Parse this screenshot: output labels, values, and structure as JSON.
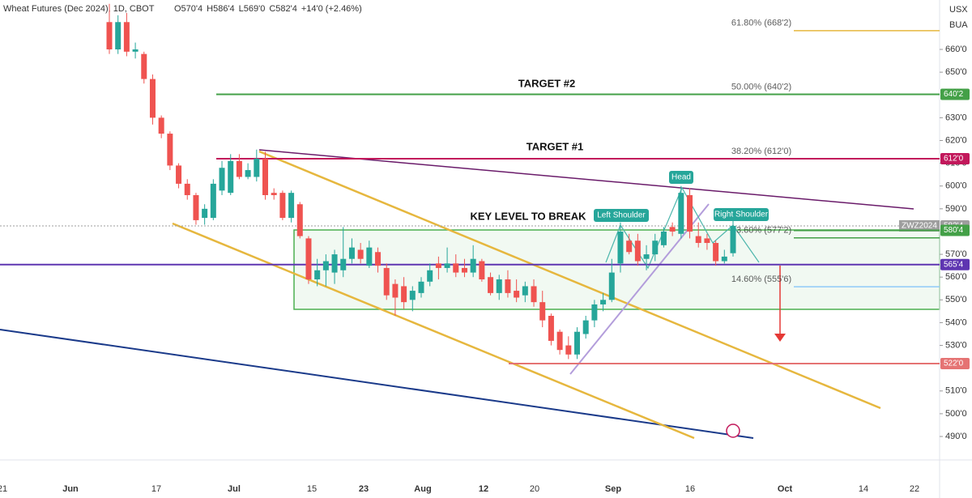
{
  "chart_data": {
    "type": "candlestick",
    "title": "Wheat Futures (Dec 2024), 1D, CBOT",
    "ohlc_labels": [
      "O570'4",
      "H586'4",
      "L569'0",
      "C582'4",
      "+14'0 (+2.46%)"
    ],
    "currency_labels": [
      "USX",
      "BUA"
    ],
    "up_color": "#26a69a",
    "down_color": "#ef5350",
    "candles": {
      "open": [
        672,
        660,
        672,
        659,
        658,
        647,
        630,
        623,
        609,
        601,
        596,
        586,
        586,
        598,
        597,
        611,
        604,
        604,
        612,
        597,
        597,
        586,
        592,
        577,
        559,
        563,
        562,
        563,
        568,
        572,
        565,
        571,
        564,
        557,
        556,
        550,
        553,
        558,
        566,
        564,
        566,
        564,
        562,
        567,
        560,
        553,
        559,
        554,
        552,
        556,
        549,
        543,
        536,
        530,
        526,
        535,
        541,
        548,
        550,
        566,
        576,
        576,
        568,
        570,
        574,
        582,
        579,
        596,
        578,
        577,
        575,
        567,
        570.5
      ],
      "high": [
        680,
        675,
        676,
        663,
        659,
        649,
        631,
        624,
        610,
        603,
        597,
        592,
        603,
        611,
        614,
        614,
        610,
        616,
        615,
        599,
        598,
        598,
        593,
        578,
        568,
        570,
        572,
        582,
        577,
        575,
        576,
        573,
        566,
        559,
        560,
        556,
        560,
        566,
        569,
        573,
        570,
        568,
        574,
        568,
        562,
        561,
        563,
        559,
        558,
        559,
        554,
        544,
        537,
        534,
        538,
        543,
        550,
        553,
        568,
        584,
        579,
        579,
        574,
        579,
        582,
        584,
        600,
        599,
        584,
        579,
        576,
        572,
        586.5
      ],
      "low": [
        658,
        658,
        657,
        656,
        645,
        627,
        621,
        607,
        599,
        594,
        583,
        583,
        585,
        596,
        596,
        603,
        603,
        602,
        594,
        594,
        585,
        584,
        577,
        557,
        556,
        556,
        557,
        560,
        566,
        566,
        564,
        562,
        550,
        543,
        546,
        545,
        551,
        556,
        559,
        562,
        560,
        560,
        560,
        558,
        552,
        550,
        551,
        549,
        549,
        547,
        538,
        530,
        526,
        524,
        524,
        533,
        538,
        545,
        549,
        562,
        570,
        565,
        563,
        567,
        573,
        578,
        577,
        577,
        573,
        572,
        565,
        566,
        569
      ],
      "close": [
        660,
        672,
        659,
        660,
        647,
        630,
        623,
        609,
        601,
        596,
        585,
        590,
        601,
        608,
        611,
        604,
        607,
        612,
        596,
        596,
        586,
        597,
        578,
        559,
        563,
        567,
        570,
        568,
        573,
        568,
        573,
        565,
        552,
        551,
        549,
        554,
        558,
        563,
        564,
        566,
        562,
        562,
        568,
        559,
        553,
        559,
        553,
        551,
        556,
        549,
        541,
        532,
        528,
        526,
        536,
        541,
        548,
        550,
        562,
        580,
        571,
        567,
        570,
        576,
        580,
        580,
        597,
        580,
        575,
        575,
        567,
        569,
        582.5
      ]
    },
    "xtick_labels": [
      "21",
      "Jun",
      "17",
      "Jul",
      "15",
      "23",
      "Aug",
      "12",
      "20",
      "Sep",
      "16",
      "Oct",
      "14",
      "22"
    ],
    "ylim": [
      479.7,
      681.7
    ],
    "yticks": [
      {
        "value": 660,
        "label": "660'0"
      },
      {
        "value": 650,
        "label": "650'0"
      },
      {
        "value": 630,
        "label": "630'0"
      },
      {
        "value": 620,
        "label": "620'0"
      },
      {
        "value": 610,
        "label": "610'0"
      },
      {
        "value": 600,
        "label": "600'0"
      },
      {
        "value": 590,
        "label": "590'0"
      },
      {
        "value": 570,
        "label": "570'0"
      },
      {
        "value": 560,
        "label": "560'0"
      },
      {
        "value": 550,
        "label": "550'0"
      },
      {
        "value": 540,
        "label": "540'0"
      },
      {
        "value": 530,
        "label": "530'0"
      },
      {
        "value": 510,
        "label": "510'0"
      },
      {
        "value": 500,
        "label": "500'0"
      },
      {
        "value": 490,
        "label": "490'0"
      }
    ],
    "levels": [
      {
        "value": 640.25,
        "label": "640'2",
        "color": "#43a047"
      },
      {
        "value": 612,
        "label": "612'0",
        "color": "#c2185b"
      },
      {
        "value": 582.5,
        "label": "582'4",
        "color": "#9e9e9e",
        "name": "ZWZ2024"
      },
      {
        "value": 580.5,
        "label": "580'4",
        "color": "#43a047"
      },
      {
        "value": 565.5,
        "label": "565'4",
        "color": "#5e35b1"
      },
      {
        "value": 522,
        "label": "522'0",
        "color": "#e57373"
      }
    ],
    "fib_levels": [
      {
        "value": 668.25,
        "label": "61.80% (668'2)",
        "color": "#e6b73e"
      },
      {
        "value": 640.25,
        "label": "50.00% (640'2)",
        "color": "#43a047"
      },
      {
        "value": 612,
        "label": "38.20% (612'0)",
        "color": "#c2185b"
      },
      {
        "value": 577.25,
        "label": "23.60% (577'2)",
        "color": "#43a047"
      },
      {
        "value": 555.75,
        "label": "14.60% (555'6)",
        "color": "#90caf9"
      }
    ],
    "annotations": [
      "TARGET #2",
      "TARGET #1",
      "KEY LEVEL TO BREAK",
      "Left Shoulder",
      "Head",
      "Right Shoulder"
    ]
  }
}
